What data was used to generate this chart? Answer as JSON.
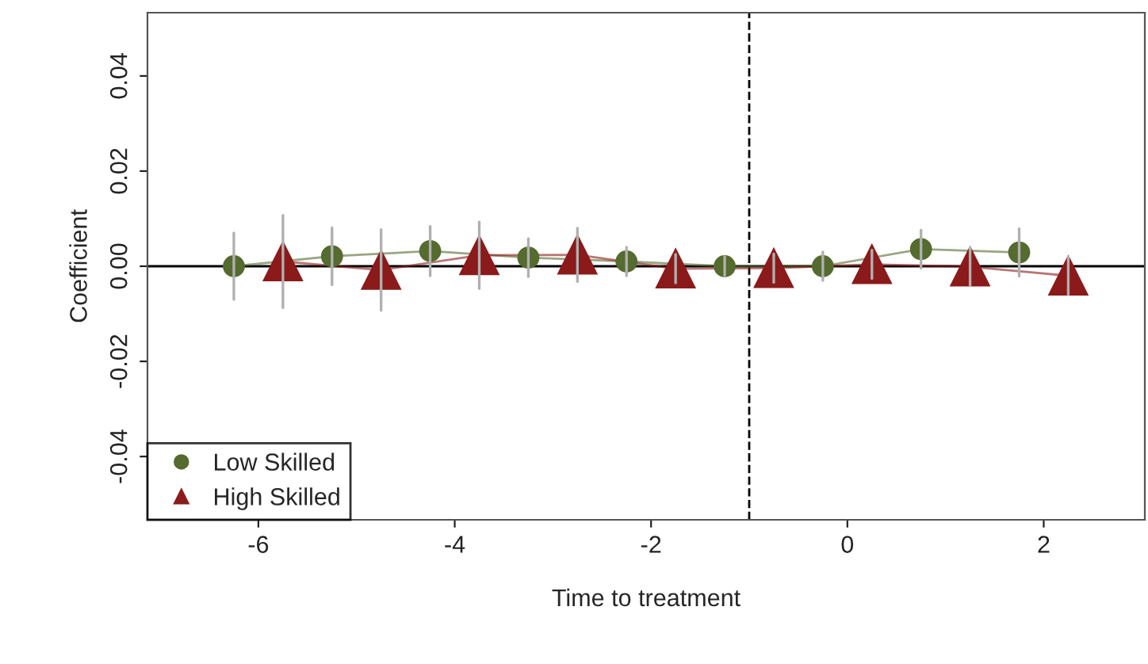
{
  "chart_data": {
    "type": "line",
    "xlabel": "Time to treatment",
    "ylabel": "Coefficient",
    "xlim": [
      -7.13,
      3.03
    ],
    "xticks": [
      -6,
      -4,
      -2,
      0,
      2
    ],
    "ylim": [
      -0.0533,
      0.0533
    ],
    "yticks": [
      {
        "value": -0.04,
        "label": "-0.04"
      },
      {
        "value": -0.02,
        "label": "-0.02"
      },
      {
        "value": 0,
        "label": "0.00"
      },
      {
        "value": 0.02,
        "label": "0.02"
      },
      {
        "value": 0.04,
        "label": "0.04"
      }
    ],
    "series": [
      {
        "name": "Low Skilled",
        "color": "#556b2f",
        "marker": "circle",
        "x": [
          -6.25,
          -5.25,
          -4.25,
          -3.25,
          -2.25,
          -1.25,
          -0.25,
          0.75,
          1.75
        ],
        "values": [
          0.0,
          0.0021,
          0.0032,
          0.0018,
          0.001,
          0.0,
          0.0,
          0.0036,
          0.0029
        ],
        "errors": [
          0.007,
          0.006,
          0.0052,
          0.004,
          0.003,
          0.002,
          0.003,
          0.004,
          0.005
        ]
      },
      {
        "name": "High Skilled",
        "color": "#8b1a1a",
        "marker": "triangle",
        "x": [
          -5.75,
          -4.75,
          -3.75,
          -2.75,
          -1.75,
          -0.75,
          0.25,
          1.25,
          2.25
        ],
        "values": [
          0.001,
          -0.0008,
          0.0023,
          0.0024,
          -0.0005,
          -0.0004,
          0.0004,
          -0.0001,
          -0.002
        ],
        "errors": [
          0.0097,
          0.0085,
          0.007,
          0.0056,
          0.003,
          0.003,
          0.003,
          0.004,
          0.004
        ]
      }
    ],
    "ref_lines": [
      {
        "axis": "y",
        "value": 0,
        "color": "#000000",
        "line_style": "solid"
      },
      {
        "axis": "x",
        "value": -1,
        "color": "#000000",
        "line_style": "dashed"
      }
    ],
    "legend": "bottom left",
    "grid": false
  }
}
